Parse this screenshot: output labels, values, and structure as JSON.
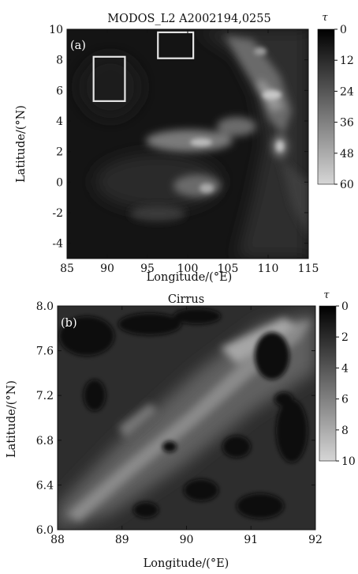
{
  "chart_data": [
    {
      "type": "heatmap",
      "panel_label": "(a)",
      "title": "MODOS_L2 A2002194,0255",
      "xlabel": "Longitude/(°E)",
      "ylabel": "Latitude/(°N)",
      "xlim": [
        85,
        115
      ],
      "ylim": [
        -5,
        10
      ],
      "x_ticks": [
        "85",
        "90",
        "95",
        "100",
        "105",
        "110",
        "115"
      ],
      "y_ticks": [
        "10",
        "8",
        "6",
        "4",
        "2",
        "0",
        "-2",
        "-4"
      ],
      "colorbar": {
        "label": "τ",
        "range": [
          0,
          60
        ],
        "ticks": [
          "0",
          "12",
          "24",
          "36",
          "48",
          "60"
        ]
      },
      "annotations": [
        {
          "type": "rectangle",
          "lon": [
            88.3,
            92.2
          ],
          "lat": [
            5.3,
            8.2
          ]
        },
        {
          "type": "rectangle",
          "lon": [
            96.3,
            100.7
          ],
          "lat": [
            8.1,
            9.8
          ]
        }
      ]
    },
    {
      "type": "heatmap",
      "panel_label": "(b)",
      "title": "Cirrus",
      "xlabel": "Longitude/(°E)",
      "ylabel": "Latitude/(°N)",
      "xlim": [
        88,
        92
      ],
      "ylim": [
        6.0,
        8.0
      ],
      "x_ticks": [
        "88",
        "89",
        "90",
        "91",
        "92"
      ],
      "y_ticks": [
        "8.0",
        "7.6",
        "7.2",
        "6.8",
        "6.4",
        "6.0"
      ],
      "colorbar": {
        "label": "τ",
        "range": [
          0,
          10
        ],
        "ticks": [
          "0",
          "2",
          "4",
          "6",
          "8",
          "10"
        ]
      }
    }
  ]
}
